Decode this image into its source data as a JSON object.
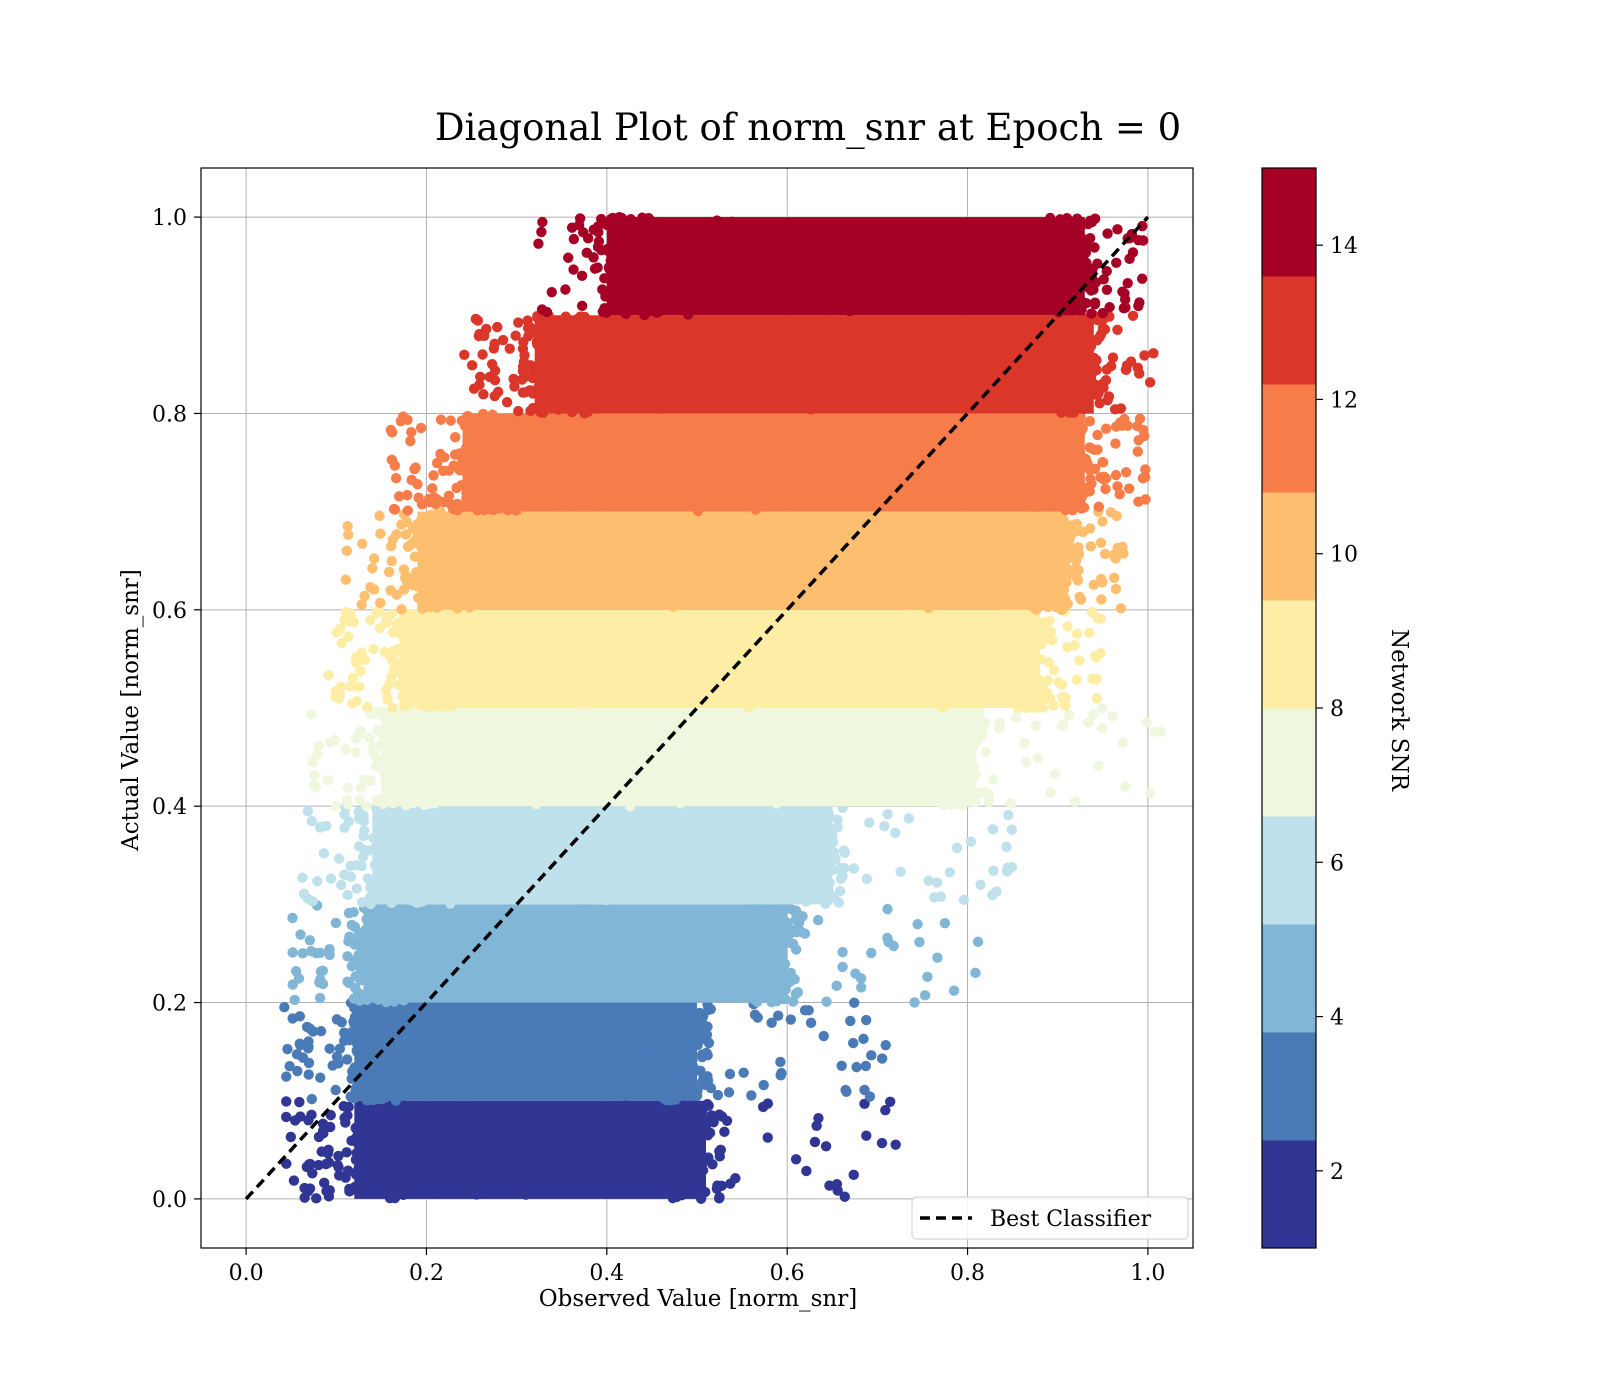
{
  "chart_data": {
    "type": "scatter",
    "title": "Diagonal Plot of norm_snr at Epoch = 0",
    "xlabel": "Observed Value [norm_snr]",
    "ylabel": "Actual Value [norm_snr]",
    "xlim": [
      -0.05,
      1.05
    ],
    "ylim": [
      -0.05,
      1.05
    ],
    "xticks": [
      "0.0",
      "0.2",
      "0.4",
      "0.6",
      "0.8",
      "1.0"
    ],
    "yticks": [
      "0.0",
      "0.2",
      "0.4",
      "0.6",
      "0.8",
      "1.0"
    ],
    "grid": true,
    "series": [
      {
        "name": "Best Classifier",
        "kind": "line",
        "style": "dashed",
        "color": "#000000",
        "x": [
          0.0,
          1.0
        ],
        "y": [
          0.0,
          1.0
        ]
      }
    ],
    "scatter_bands": [
      {
        "y_range": [
          0.0,
          0.1
        ],
        "x_range": [
          0.1,
          0.53
        ],
        "snr": 2,
        "color": "#313695"
      },
      {
        "y_range": [
          0.1,
          0.2
        ],
        "x_range": [
          0.1,
          0.52
        ],
        "snr": 3,
        "color": "#4a7bb7"
      },
      {
        "y_range": [
          0.2,
          0.3
        ],
        "x_range": [
          0.11,
          0.62
        ],
        "snr": 5,
        "color": "#81b6d6"
      },
      {
        "y_range": [
          0.3,
          0.4
        ],
        "x_range": [
          0.12,
          0.67
        ],
        "snr": 6,
        "color": "#bfe1ec"
      },
      {
        "y_range": [
          0.4,
          0.5
        ],
        "x_range": [
          0.13,
          0.83
        ],
        "snr": 7,
        "color": "#eff8df"
      },
      {
        "y_range": [
          0.5,
          0.6
        ],
        "x_range": [
          0.15,
          0.9
        ],
        "snr": 9,
        "color": "#feeea5"
      },
      {
        "y_range": [
          0.6,
          0.7
        ],
        "x_range": [
          0.17,
          0.93
        ],
        "snr": 10,
        "color": "#fdbe6f"
      },
      {
        "y_range": [
          0.7,
          0.8
        ],
        "x_range": [
          0.22,
          0.95
        ],
        "snr": 11,
        "color": "#f67c4a"
      },
      {
        "y_range": [
          0.8,
          0.9
        ],
        "x_range": [
          0.3,
          0.96
        ],
        "snr": 13,
        "color": "#da362a"
      },
      {
        "y_range": [
          0.9,
          1.0
        ],
        "x_range": [
          0.38,
          0.95
        ],
        "snr": 14,
        "color": "#a50026"
      }
    ],
    "legend": {
      "position": "lower-right",
      "entries": [
        "Best Classifier"
      ]
    },
    "colorbar": {
      "label": "Network SNR",
      "range": [
        1,
        15
      ],
      "ticks": [
        "2",
        "4",
        "6",
        "8",
        "10",
        "12",
        "14"
      ],
      "colors": [
        "#313695",
        "#4a7bb7",
        "#81b6d6",
        "#bfe1ec",
        "#eff8df",
        "#feeea5",
        "#fdbe6f",
        "#f67c4a",
        "#da362a",
        "#a50026"
      ]
    }
  }
}
